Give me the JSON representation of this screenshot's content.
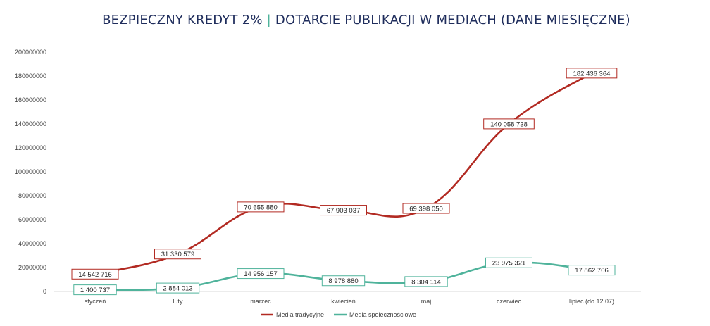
{
  "title": {
    "part1": "BEZPIECZNY KREDYT 2%",
    "separator": "|",
    "part2": "DOTARCIE PUBLIKACJI W MEDIACH (DANE MIESIĘCZNE)"
  },
  "chart_data": {
    "type": "line",
    "categories": [
      "styczeń",
      "luty",
      "marzec",
      "kwiecień",
      "maj",
      "czerwiec",
      "lipiec (do 12.07)"
    ],
    "ylim": [
      0,
      200000000
    ],
    "yticks": [
      "0",
      "20000000",
      "40000000",
      "60000000",
      "80000000",
      "100000000",
      "120000000",
      "140000000",
      "160000000",
      "180000000",
      "200000000"
    ],
    "grid": false,
    "legend_position": "bottom",
    "series": [
      {
        "name": "Media tradycyjne",
        "color": "#b22a22",
        "values": [
          14542716,
          31330579,
          70655880,
          67903037,
          69398050,
          140058738,
          182436364
        ],
        "labels": [
          "14 542 716",
          "31 330 579",
          "70 655 880",
          "67 903 037",
          "69 398 050",
          "140 058 738",
          "182 436 364"
        ]
      },
      {
        "name": "Media społecznościowe",
        "color": "#4fb39b",
        "values": [
          1400737,
          2884013,
          14956157,
          8978880,
          8304114,
          23975321,
          17862706
        ],
        "labels": [
          "1 400 737",
          "2 884 013",
          "14 956 157",
          "8 978 880",
          "8 304 114",
          "23 975 321",
          "17 862 706"
        ]
      }
    ]
  }
}
